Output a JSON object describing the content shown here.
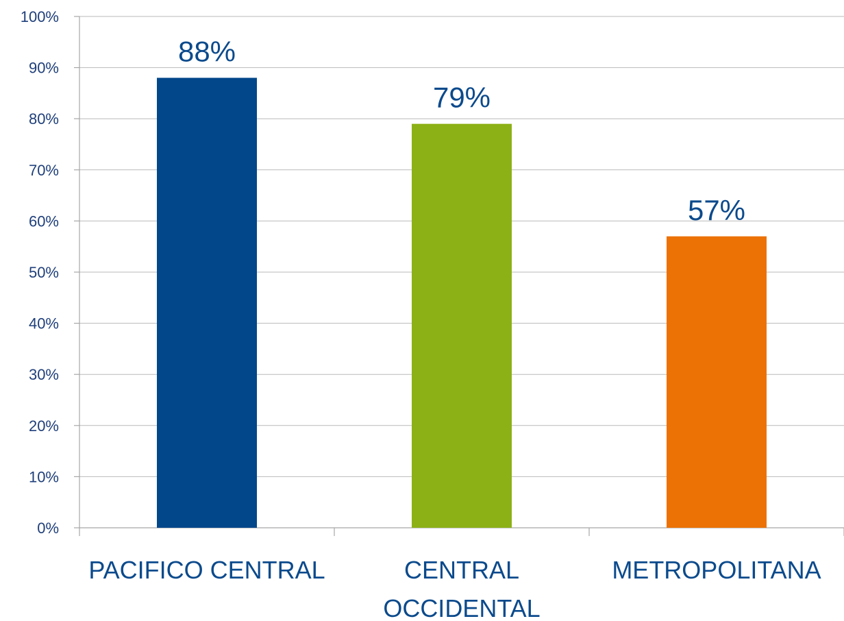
{
  "chart_data": {
    "type": "bar",
    "categories": [
      "PACIFICO CENTRAL",
      "CENTRAL OCCIDENTAL",
      "METROPOLITANA"
    ],
    "category_lines": [
      [
        "PACIFICO CENTRAL"
      ],
      [
        "CENTRAL",
        "OCCIDENTAL"
      ],
      [
        "METROPOLITANA"
      ]
    ],
    "values": [
      88,
      79,
      57
    ],
    "value_labels": [
      "88%",
      "79%",
      "57%"
    ],
    "colors": [
      "#02478a",
      "#8cb116",
      "#ec7206"
    ],
    "ylim": [
      0,
      100
    ],
    "yticks": [
      0,
      10,
      20,
      30,
      40,
      50,
      60,
      70,
      80,
      90,
      100
    ],
    "ytick_labels": [
      "0%",
      "10%",
      "20%",
      "30%",
      "40%",
      "50%",
      "60%",
      "70%",
      "80%",
      "90%",
      "100%"
    ],
    "title": "",
    "xlabel": "",
    "ylabel": "",
    "grid": true,
    "legend": "none"
  }
}
